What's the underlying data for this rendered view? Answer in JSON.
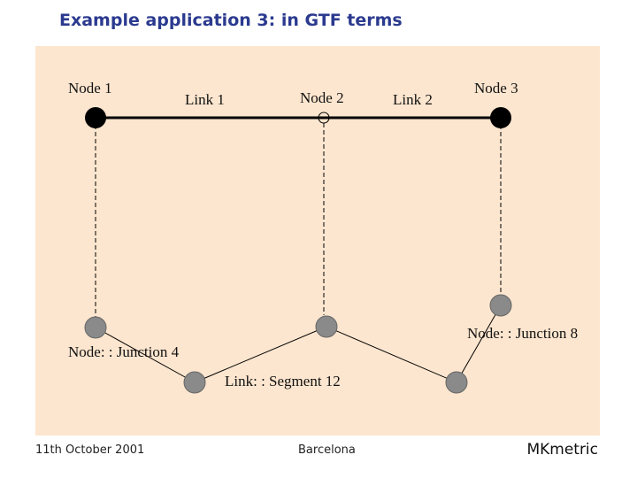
{
  "title": "Example application 3: in GTF terms",
  "labels": {
    "node1": "Node 1",
    "link1": "Link 1",
    "node2": "Node 2",
    "link2": "Link 2",
    "node3": "Node 3",
    "junction4": "Node: : Junction 4",
    "junction8": "Node: : Junction 8",
    "segment12": "Link: : Segment 12"
  },
  "footer": {
    "date": "11th October 2001",
    "location": "Barcelona",
    "brand": "MKmetric"
  },
  "colors": {
    "title": "#2b3a8f",
    "panel": "#fde6cf",
    "node": "#000000",
    "junction": "#8a8a8a"
  }
}
